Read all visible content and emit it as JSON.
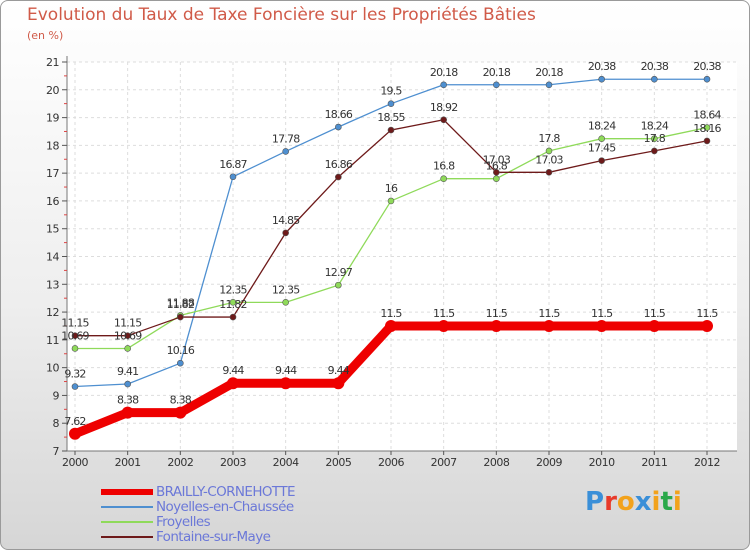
{
  "chart_data": {
    "type": "line",
    "title": "Evolution du Taux de Taxe Foncière sur les Propriétés Bâties",
    "unit_label": "(en %)",
    "categories": [
      "2000",
      "2001",
      "2002",
      "2003",
      "2004",
      "2005",
      "2006",
      "2007",
      "2008",
      "2009",
      "2010",
      "2011",
      "2012"
    ],
    "ylim": [
      7,
      21
    ],
    "yticks": [
      "7",
      "8",
      "9",
      "10",
      "11",
      "12",
      "13",
      "14",
      "15",
      "16",
      "17",
      "18",
      "19",
      "20",
      "21"
    ],
    "series": [
      {
        "name": "BRAILLY-CORNEHOTTE",
        "color": "#ee0000",
        "values": [
          7.62,
          8.38,
          8.38,
          9.44,
          9.44,
          9.44,
          11.5,
          11.5,
          11.5,
          11.5,
          11.5,
          11.5,
          11.5
        ],
        "labels": [
          "7.62",
          "8.38",
          "8.38",
          "9.44",
          "9.44",
          "9.44",
          "11.5",
          "11.5",
          "11.5",
          "11.5",
          "11.5",
          "11.5",
          "11.5"
        ]
      },
      {
        "name": "Noyelles-en-Chaussée",
        "color": "#4e8fd0",
        "values": [
          9.32,
          9.41,
          10.16,
          16.87,
          17.78,
          18.66,
          19.5,
          20.18,
          20.18,
          20.18,
          20.38,
          20.38,
          20.38
        ],
        "labels": [
          "9.32",
          "9.41",
          "10.16",
          "16.87",
          "17.78",
          "18.66",
          "19.5",
          "20.18",
          "20.18",
          "20.18",
          "20.38",
          "20.38",
          "20.38"
        ]
      },
      {
        "name": "Froyelles",
        "color": "#8fda5a",
        "values": [
          10.69,
          10.69,
          11.88,
          12.35,
          12.35,
          12.97,
          16,
          16.8,
          16.8,
          17.8,
          18.24,
          18.24,
          18.64
        ],
        "labels": [
          "10.69",
          "10.69",
          "11.88",
          "12.35",
          "12.35",
          "12.97",
          "16",
          "16.8",
          "16.8",
          "17.8",
          "18.24",
          "18.24",
          "18.64"
        ]
      },
      {
        "name": "Fontaine-sur-Maye",
        "color": "#6e1a1a",
        "values": [
          11.15,
          11.15,
          11.82,
          11.82,
          14.85,
          16.86,
          18.55,
          18.92,
          17.03,
          17.03,
          17.45,
          17.8,
          18.16
        ],
        "labels": [
          "11.15",
          "11.15",
          "11.82",
          "11.82",
          "14.85",
          "16.86",
          "18.55",
          "18.92",
          "17.03",
          "17.03",
          "17.45",
          "17.8",
          "18.16"
        ]
      }
    ]
  },
  "logo": {
    "letters": [
      "P",
      "r",
      "o",
      "x",
      "i",
      "t",
      "i"
    ],
    "colors": [
      "#3a8fd8",
      "#e83a2a",
      "#f2a21c",
      "#3a8fd8",
      "#f2a21c",
      "#2aa84a",
      "#f2a21c"
    ]
  }
}
